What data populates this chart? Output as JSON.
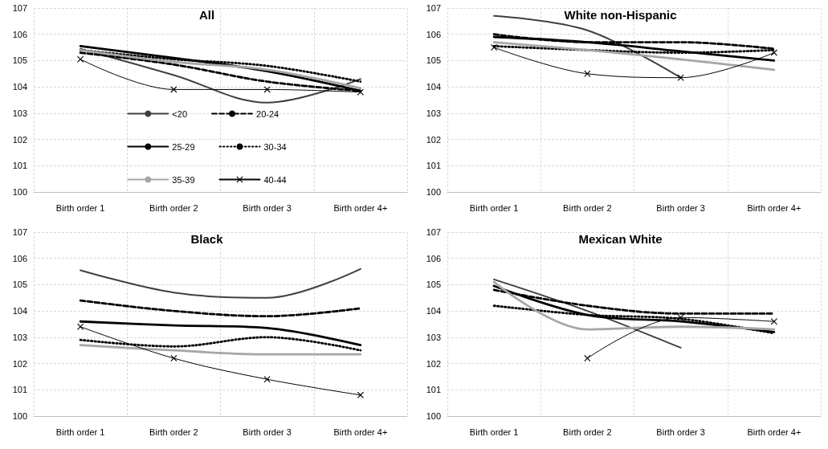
{
  "chart_data": [
    {
      "type": "line",
      "title": "All",
      "categories": [
        "Birth order 1",
        "Birth order 2",
        "Birth order 3",
        "Birth order 4+"
      ],
      "ylim": [
        100,
        107
      ],
      "yticks": [
        100,
        101,
        102,
        103,
        104,
        105,
        106,
        107
      ],
      "grid": true,
      "legend": "bottom",
      "series": [
        {
          "name": "<20",
          "color": "#404040",
          "values": [
            105.45,
            104.45,
            103.4,
            104.3
          ],
          "line_style": "solid",
          "marker": "none"
        },
        {
          "name": "20-24",
          "color": "#000000",
          "values": [
            105.3,
            104.85,
            104.2,
            103.85
          ],
          "line_style": "dashed",
          "marker": "none"
        },
        {
          "name": "25-29",
          "color": "#000000",
          "values": [
            105.55,
            105.1,
            104.6,
            103.85
          ],
          "line_style": "solid",
          "marker": "none"
        },
        {
          "name": "30-34",
          "color": "#000000",
          "values": [
            105.4,
            105.05,
            104.8,
            104.2
          ],
          "line_style": "dotted",
          "marker": "none"
        },
        {
          "name": "35-39",
          "color": "#a6a6a6",
          "values": [
            105.4,
            104.95,
            104.65,
            103.95
          ],
          "line_style": "solid",
          "marker": "none"
        },
        {
          "name": "40-44",
          "color": "#000000",
          "values": [
            105.05,
            103.9,
            103.9,
            103.8
          ],
          "line_style": "solid",
          "marker": "cross"
        }
      ]
    },
    {
      "type": "line",
      "title": "White non-Hispanic",
      "categories": [
        "Birth order 1",
        "Birth order 2",
        "Birth order 3",
        "Birth order 4+"
      ],
      "ylim": [
        100,
        107
      ],
      "yticks": [
        100,
        101,
        102,
        103,
        104,
        105,
        106,
        107
      ],
      "grid": true,
      "series": [
        {
          "color": "#404040",
          "values": [
            106.7,
            106.15,
            104.35,
            null
          ],
          "line_style": "solid",
          "marker": "none"
        },
        {
          "color": "#000000",
          "values": [
            106.0,
            105.7,
            105.7,
            105.45
          ],
          "line_style": "dashed",
          "marker": "none"
        },
        {
          "color": "#000000",
          "values": [
            105.9,
            105.7,
            105.35,
            105.0
          ],
          "line_style": "solid",
          "marker": "none"
        },
        {
          "color": "#000000",
          "values": [
            105.55,
            105.4,
            105.3,
            105.4
          ],
          "line_style": "dotted",
          "marker": "none"
        },
        {
          "color": "#a6a6a6",
          "values": [
            105.7,
            105.4,
            105.05,
            104.65
          ],
          "line_style": "solid",
          "marker": "none"
        },
        {
          "color": "#000000",
          "values": [
            105.5,
            104.5,
            104.35,
            105.3
          ],
          "line_style": "solid",
          "marker": "cross"
        }
      ]
    },
    {
      "type": "line",
      "title": "Black",
      "categories": [
        "Birth order 1",
        "Birth order 2",
        "Birth order 3",
        "Birth order 4+"
      ],
      "ylim": [
        100,
        107
      ],
      "yticks": [
        100,
        101,
        102,
        103,
        104,
        105,
        106,
        107
      ],
      "grid": true,
      "series": [
        {
          "color": "#404040",
          "values": [
            105.55,
            104.7,
            104.5,
            105.6
          ],
          "line_style": "solid",
          "marker": "none"
        },
        {
          "color": "#000000",
          "values": [
            104.4,
            104.0,
            103.8,
            104.1
          ],
          "line_style": "dashed",
          "marker": "none"
        },
        {
          "color": "#000000",
          "values": [
            103.6,
            103.45,
            103.35,
            102.7
          ],
          "line_style": "solid",
          "marker": "none"
        },
        {
          "color": "#000000",
          "values": [
            102.9,
            102.65,
            103.0,
            102.5
          ],
          "line_style": "dotted",
          "marker": "none"
        },
        {
          "color": "#a6a6a6",
          "values": [
            102.7,
            102.5,
            102.35,
            102.35
          ],
          "line_style": "solid",
          "marker": "none"
        },
        {
          "color": "#000000",
          "values": [
            103.4,
            102.2,
            101.4,
            100.8
          ],
          "line_style": "solid",
          "marker": "cross"
        }
      ]
    },
    {
      "type": "line",
      "title": "Mexican White",
      "categories": [
        "Birth order 1",
        "Birth order 2",
        "Birth order 3",
        "Birth order 4+"
      ],
      "ylim": [
        100,
        107
      ],
      "yticks": [
        100,
        101,
        102,
        103,
        104,
        105,
        106,
        107
      ],
      "grid": true,
      "series": [
        {
          "color": "#404040",
          "values": [
            105.2,
            104.0,
            102.6,
            null
          ],
          "line_style": "solid",
          "marker": "none"
        },
        {
          "color": "#000000",
          "values": [
            104.8,
            104.2,
            103.9,
            103.9
          ],
          "line_style": "dashed",
          "marker": "none"
        },
        {
          "color": "#000000",
          "values": [
            104.95,
            103.85,
            103.6,
            103.2
          ],
          "line_style": "solid",
          "marker": "none"
        },
        {
          "color": "#000000",
          "values": [
            104.2,
            103.85,
            103.7,
            103.15
          ],
          "line_style": "dotted",
          "marker": "none"
        },
        {
          "color": "#a6a6a6",
          "values": [
            105.1,
            103.3,
            103.4,
            103.3
          ],
          "line_style": "solid",
          "marker": "none"
        },
        {
          "color": "#000000",
          "values": [
            null,
            102.2,
            103.75,
            103.6
          ],
          "line_style": "solid",
          "marker": "cross"
        }
      ]
    }
  ]
}
